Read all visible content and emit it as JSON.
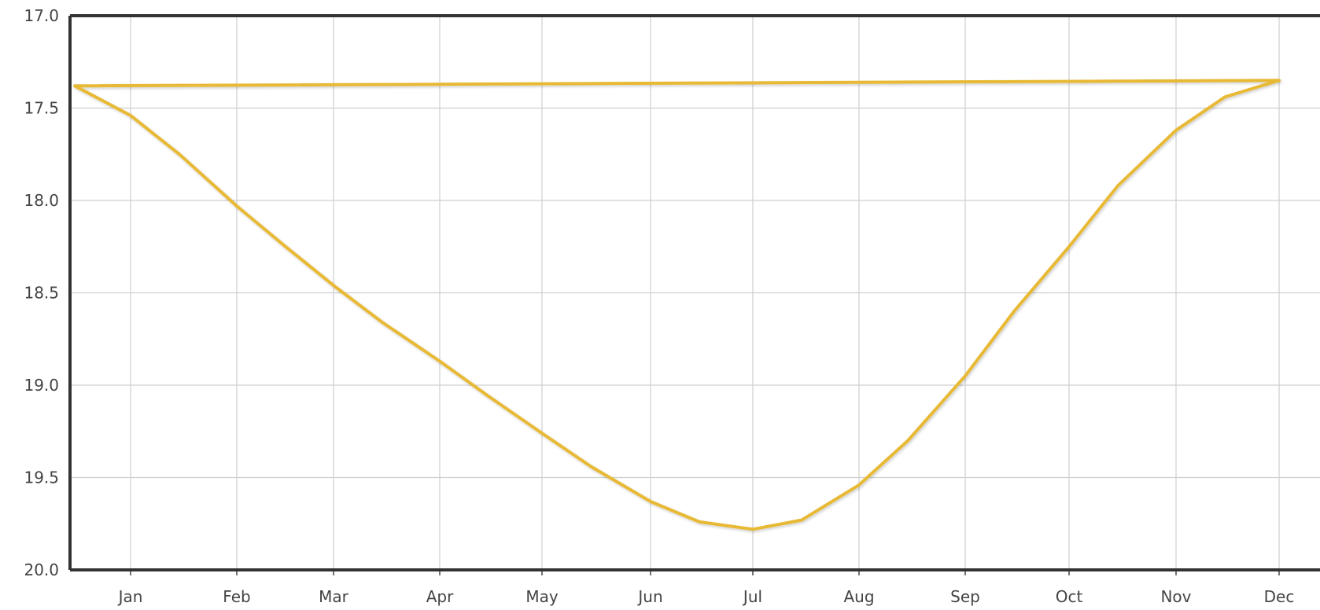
{
  "chart_data": {
    "type": "line",
    "title": "",
    "xlabel": "",
    "ylabel": "",
    "y_axis": {
      "inverted": true,
      "ylim": [
        17.0,
        20.0
      ],
      "ticks": [
        "17.0",
        "17.5",
        "18.0",
        "18.5",
        "19.0",
        "19.5",
        "20.0"
      ]
    },
    "x_axis": {
      "ticks": [
        "Jan",
        "Feb",
        "Mar",
        "Apr",
        "May",
        "Jun",
        "Jul",
        "Aug",
        "Sep",
        "Oct",
        "Nov",
        "Dec"
      ]
    },
    "grid": true,
    "legend": "none",
    "series": [
      {
        "color": "#E8B934",
        "x": [
          "Dec 15",
          "Jan 1",
          "Jan 15",
          "Feb 1",
          "Feb 15",
          "Mar 1",
          "Mar 15",
          "Apr 1",
          "Apr 15",
          "May 1",
          "May 15",
          "Jun 1",
          "Jun 15",
          "Jul 1",
          "Jul 15",
          "Aug 1",
          "Aug 15",
          "Sep 1",
          "Sep 15",
          "Oct 1",
          "Oct 15",
          "Nov 1",
          "Nov 15",
          "Dec 1",
          "Dec 15"
        ],
        "values": [
          17.38,
          17.54,
          17.75,
          18.03,
          18.25,
          18.46,
          18.66,
          18.87,
          19.06,
          19.26,
          19.44,
          19.63,
          19.74,
          19.78,
          19.73,
          19.54,
          19.3,
          18.95,
          18.6,
          18.25,
          17.92,
          17.62,
          17.44,
          17.35,
          17.38
        ]
      }
    ]
  }
}
